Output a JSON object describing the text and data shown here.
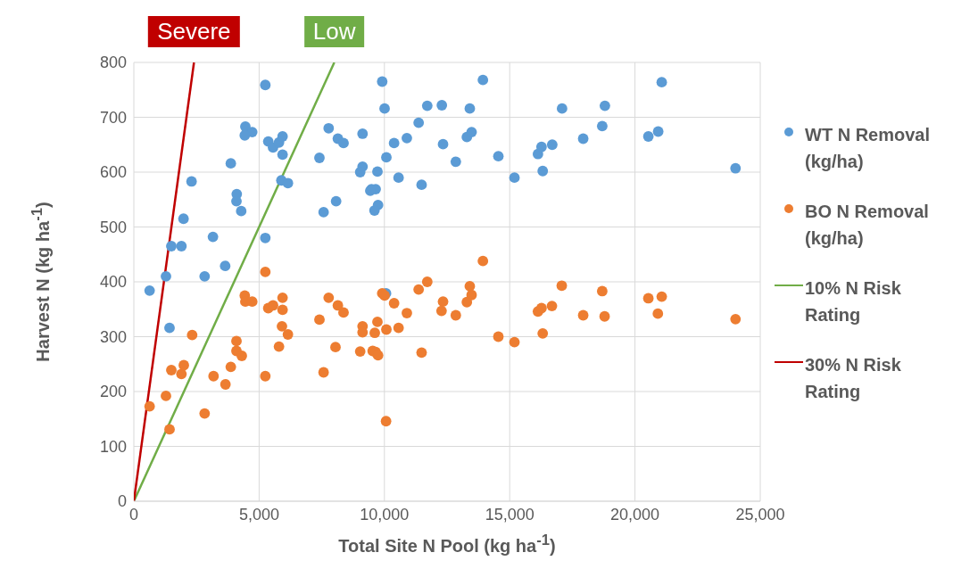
{
  "chart_data": {
    "type": "scatter",
    "xlabel": "Total Site N Pool (kg ha$^{-1}$)",
    "ylabel": "Harvest N (kg ha$^{-1}$)",
    "annotations": [
      "Severe",
      "Low"
    ],
    "xlim": [
      0,
      25000
    ],
    "xticks": [
      0,
      {
        "value": 5000,
        "label": "5,000"
      },
      {
        "value": 10000,
        "label": "10,000"
      },
      {
        "value": 15000,
        "label": "15,000"
      },
      {
        "value": 20000,
        "label": "20,000"
      },
      {
        "value": 25000,
        "label": "25,000"
      }
    ],
    "ylim": [
      0,
      800
    ],
    "yticks": [
      0,
      100,
      200,
      300,
      400,
      500,
      600,
      700,
      800
    ],
    "grid": true,
    "legend": "right",
    "marker": "circle",
    "series": [
      {
        "name": "WT N Removal (kg/ha)",
        "color": "#5b9bd5",
        "x": [
          5247,
          9912,
          10007,
          7775,
          4451,
          4724,
          4427,
          9128,
          5365,
          5555,
          5793,
          5935,
          5935,
          8143,
          8368,
          10386,
          10896,
          7407,
          3870,
          10078,
          9128,
          9033,
          9722,
          10565,
          2303,
          5888,
          6149,
          4107,
          4095,
          4285,
          9484,
          9651,
          9437,
          9746,
          9603,
          8072,
          7573,
          1982,
          5247,
          1496,
          1899,
          3157,
          3644,
          1282,
          2825,
          629,
          1424,
          10065,
          13931,
          11710,
          12292,
          13408,
          11366,
          12340,
          13290,
          13480,
          12850,
          14548,
          11484,
          15190,
          16318,
          16128,
          16270,
          16698,
          17090,
          17933,
          18693,
          18800,
          20534,
          20926,
          21068,
          24013
        ],
        "values": [
          759,
          765,
          716,
          680,
          683,
          673,
          667,
          670,
          656,
          645,
          654,
          665,
          632,
          661,
          653,
          653,
          662,
          626,
          616,
          627,
          610,
          600,
          601,
          590,
          583,
          585,
          580,
          560,
          547,
          529,
          569,
          569,
          566,
          540,
          530,
          547,
          527,
          515,
          480,
          465,
          465,
          482,
          429,
          410,
          410,
          384,
          316,
          379,
          768,
          721,
          722,
          716,
          690,
          651,
          664,
          673,
          619,
          629,
          577,
          590,
          602,
          633,
          646,
          650,
          716,
          661,
          684,
          721,
          665,
          674,
          764,
          607
        ]
      },
      {
        "name": "BO N Removal (kg/ha)",
        "color": "#ed7d31",
        "x": [
          5247,
          629,
          1282,
          1424,
          1496,
          1899,
          1994,
          2327,
          2825,
          3181,
          3656,
          3870,
          4095,
          4095,
          4309,
          4427,
          4451,
          4724,
          5247,
          5365,
          5555,
          5935,
          5935,
          5793,
          5911,
          6149,
          7407,
          7573,
          7775,
          8143,
          8368,
          8048,
          9033,
          9128,
          9128,
          9615,
          9722,
          9532,
          9651,
          9746,
          9912,
          10007,
          10078,
          10065,
          10386,
          10565,
          10896,
          13931,
          11710,
          11366,
          13408,
          13480,
          13290,
          12340,
          12280,
          12850,
          11484,
          14548,
          15190,
          16318,
          16128,
          16270,
          16686,
          17078,
          17933,
          18693,
          18788,
          20534,
          21068,
          20914,
          24013
        ],
        "values": [
          418,
          173,
          192,
          131,
          239,
          232,
          248,
          303,
          160,
          228,
          213,
          245,
          292,
          274,
          265,
          375,
          364,
          364,
          228,
          352,
          357,
          349,
          371,
          282,
          319,
          304,
          331,
          235,
          371,
          357,
          344,
          281,
          273,
          319,
          308,
          307,
          327,
          274,
          272,
          266,
          379,
          375,
          313,
          146,
          361,
          316,
          343,
          438,
          400,
          386,
          392,
          376,
          363,
          364,
          347,
          339,
          271,
          300,
          290,
          306,
          346,
          352,
          356,
          393,
          339,
          383,
          337,
          370,
          373,
          342,
          332
        ]
      },
      {
        "name": "10% N Risk Rating",
        "type": "line",
        "marker": "none",
        "color": "#70ad47",
        "x": [
          0,
          8000
        ],
        "values": [
          0,
          800
        ]
      },
      {
        "name": "30% N Risk Rating",
        "type": "line",
        "marker": "none",
        "color": "#c00000",
        "x": [
          0,
          2400
        ],
        "values": [
          0,
          800
        ]
      }
    ]
  }
}
